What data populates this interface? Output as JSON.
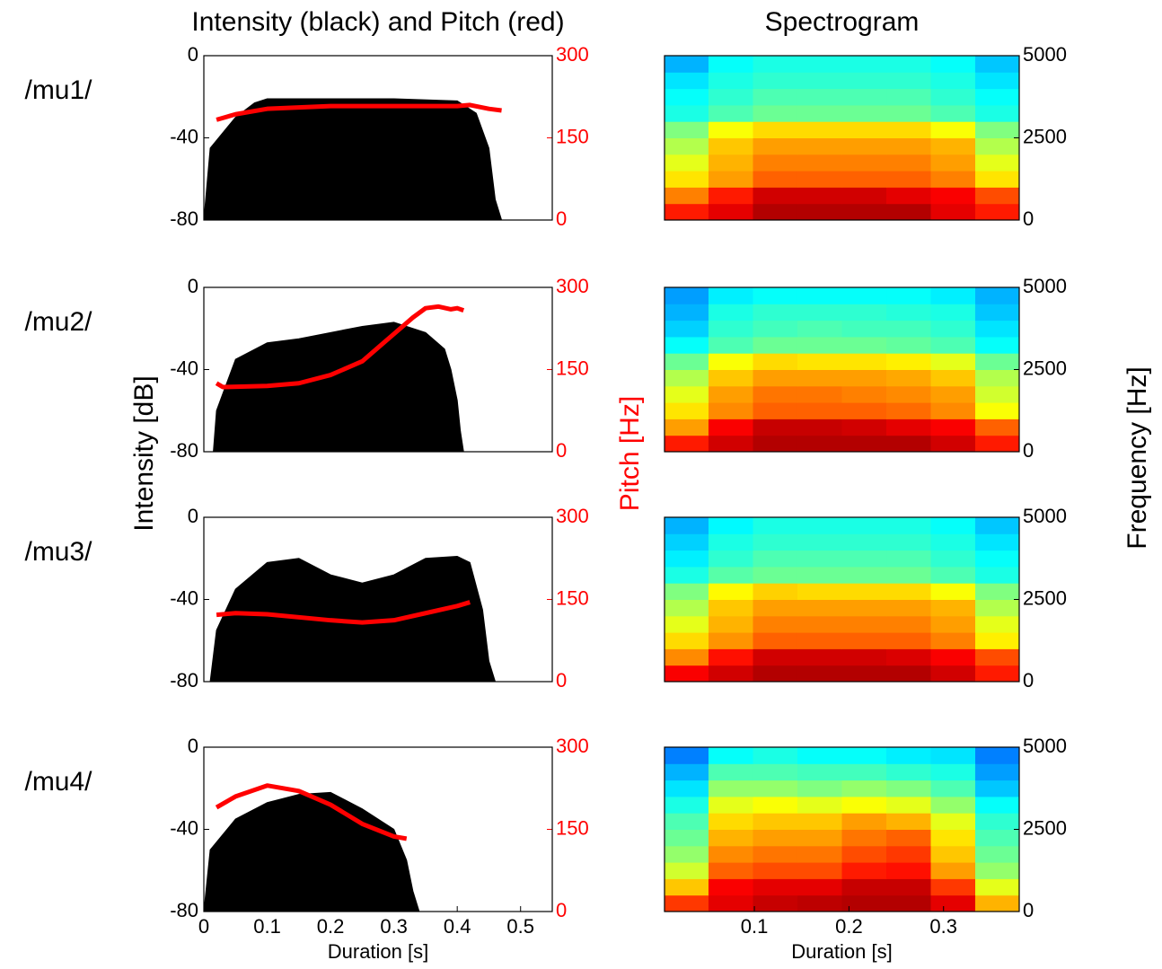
{
  "chart_data": [
    {
      "type": "line",
      "title": "Intensity (black) and Pitch (red)",
      "label": "/mu1/",
      "xlim": [
        0,
        0.55
      ],
      "ylim": [
        -80,
        0
      ],
      "yticks": [
        -80,
        -40,
        0
      ],
      "y2lim": [
        0,
        300
      ],
      "y2ticks": [
        0,
        150,
        300
      ],
      "series": [
        {
          "color": "#000000",
          "area": true,
          "x": [
            0,
            0.01,
            0.05,
            0.08,
            0.1,
            0.2,
            0.3,
            0.4,
            0.43,
            0.45,
            0.46,
            0.47
          ],
          "values": [
            -80,
            -45,
            -30,
            -23,
            -21,
            -21,
            -21,
            -22,
            -28,
            -45,
            -70,
            -80
          ]
        },
        {
          "color": "#ff0000",
          "axis": "y2",
          "x": [
            0.02,
            0.05,
            0.1,
            0.2,
            0.3,
            0.4,
            0.42,
            0.45,
            0.47
          ],
          "values": [
            183,
            193,
            203,
            208,
            208,
            208,
            210,
            203,
            200
          ]
        }
      ]
    },
    {
      "type": "heatmap",
      "title": "Spectrogram",
      "colormap": "jet",
      "xlim": [
        0.005,
        0.38
      ],
      "ylim": [
        0,
        5000
      ],
      "yticks": [
        0,
        2500,
        5000
      ],
      "x": [
        0.028,
        0.075,
        0.122,
        0.169,
        0.216,
        0.263,
        0.31,
        0.357
      ],
      "y": [
        250,
        750,
        1250,
        1750,
        2250,
        2750,
        3250,
        3750,
        4250,
        4750
      ],
      "z": [
        [
          0.85,
          0.9,
          0.95,
          0.95,
          0.95,
          0.95,
          0.9,
          0.85
        ],
        [
          0.75,
          0.85,
          0.92,
          0.92,
          0.92,
          0.9,
          0.88,
          0.8
        ],
        [
          0.65,
          0.72,
          0.78,
          0.78,
          0.78,
          0.78,
          0.75,
          0.65
        ],
        [
          0.6,
          0.7,
          0.75,
          0.75,
          0.75,
          0.75,
          0.72,
          0.6
        ],
        [
          0.55,
          0.68,
          0.72,
          0.72,
          0.72,
          0.72,
          0.7,
          0.55
        ],
        [
          0.5,
          0.62,
          0.66,
          0.66,
          0.66,
          0.66,
          0.62,
          0.5
        ],
        [
          0.4,
          0.45,
          0.48,
          0.48,
          0.48,
          0.48,
          0.45,
          0.4
        ],
        [
          0.38,
          0.42,
          0.45,
          0.45,
          0.45,
          0.45,
          0.42,
          0.38
        ],
        [
          0.35,
          0.4,
          0.42,
          0.42,
          0.42,
          0.42,
          0.4,
          0.35
        ],
        [
          0.3,
          0.38,
          0.4,
          0.4,
          0.4,
          0.4,
          0.38,
          0.32
        ]
      ]
    },
    {
      "type": "line",
      "label": "/mu2/",
      "ylabel": "Intensity [dB]",
      "y2label": "Pitch [Hz]",
      "xlim": [
        0,
        0.55
      ],
      "ylim": [
        -80,
        0
      ],
      "yticks": [
        -80,
        -40,
        0
      ],
      "y2lim": [
        0,
        300
      ],
      "y2ticks": [
        0,
        150,
        300
      ],
      "series": [
        {
          "color": "#000000",
          "area": true,
          "x": [
            0.015,
            0.02,
            0.05,
            0.1,
            0.15,
            0.2,
            0.25,
            0.3,
            0.35,
            0.38,
            0.39,
            0.4,
            0.405,
            0.41
          ],
          "values": [
            -80,
            -60,
            -35,
            -27,
            -25,
            -22,
            -19,
            -17,
            -22,
            -30,
            -40,
            -55,
            -70,
            -80
          ]
        },
        {
          "color": "#ff0000",
          "axis": "y2",
          "x": [
            0.02,
            0.03,
            0.1,
            0.15,
            0.2,
            0.25,
            0.3,
            0.33,
            0.35,
            0.37,
            0.39,
            0.4,
            0.41
          ],
          "values": [
            125,
            118,
            120,
            125,
            140,
            165,
            215,
            245,
            262,
            265,
            260,
            262,
            258
          ]
        }
      ]
    },
    {
      "type": "heatmap",
      "ylabel": "Frequency [Hz]",
      "colormap": "jet",
      "xlim": [
        0.005,
        0.38
      ],
      "ylim": [
        0,
        5000
      ],
      "yticks": [
        0,
        2500,
        5000
      ],
      "x": [
        0.028,
        0.075,
        0.122,
        0.169,
        0.216,
        0.263,
        0.31,
        0.357
      ],
      "y": [
        250,
        750,
        1250,
        1750,
        2250,
        2750,
        3250,
        3750,
        4250,
        4750
      ],
      "z": [
        [
          0.85,
          0.92,
          0.95,
          0.95,
          0.95,
          0.95,
          0.92,
          0.85
        ],
        [
          0.72,
          0.88,
          0.93,
          0.93,
          0.92,
          0.9,
          0.88,
          0.78
        ],
        [
          0.65,
          0.74,
          0.78,
          0.78,
          0.78,
          0.77,
          0.74,
          0.62
        ],
        [
          0.6,
          0.72,
          0.76,
          0.76,
          0.75,
          0.74,
          0.72,
          0.58
        ],
        [
          0.55,
          0.68,
          0.72,
          0.72,
          0.72,
          0.71,
          0.68,
          0.55
        ],
        [
          0.48,
          0.62,
          0.66,
          0.65,
          0.65,
          0.64,
          0.6,
          0.48
        ],
        [
          0.38,
          0.45,
          0.48,
          0.48,
          0.48,
          0.47,
          0.45,
          0.38
        ],
        [
          0.33,
          0.42,
          0.44,
          0.45,
          0.44,
          0.44,
          0.42,
          0.35
        ],
        [
          0.3,
          0.4,
          0.42,
          0.42,
          0.42,
          0.41,
          0.4,
          0.32
        ],
        [
          0.28,
          0.36,
          0.38,
          0.38,
          0.38,
          0.38,
          0.36,
          0.3
        ]
      ]
    },
    {
      "type": "line",
      "label": "/mu3/",
      "xlim": [
        0,
        0.55
      ],
      "ylim": [
        -80,
        0
      ],
      "yticks": [
        -80,
        -40,
        0
      ],
      "y2lim": [
        0,
        300
      ],
      "y2ticks": [
        0,
        150,
        300
      ],
      "series": [
        {
          "color": "#000000",
          "area": true,
          "x": [
            0.01,
            0.02,
            0.05,
            0.1,
            0.15,
            0.2,
            0.25,
            0.3,
            0.35,
            0.4,
            0.42,
            0.44,
            0.45,
            0.46
          ],
          "values": [
            -80,
            -55,
            -35,
            -22,
            -20,
            -28,
            -32,
            -28,
            -20,
            -19,
            -22,
            -45,
            -70,
            -80
          ]
        },
        {
          "color": "#ff0000",
          "axis": "y2",
          "x": [
            0.02,
            0.05,
            0.1,
            0.2,
            0.25,
            0.3,
            0.35,
            0.4,
            0.42
          ],
          "values": [
            122,
            125,
            123,
            112,
            108,
            112,
            125,
            138,
            145
          ]
        }
      ]
    },
    {
      "type": "heatmap",
      "colormap": "jet",
      "xlim": [
        0.005,
        0.38
      ],
      "ylim": [
        0,
        5000
      ],
      "yticks": [
        0,
        2500,
        5000
      ],
      "x": [
        0.028,
        0.075,
        0.122,
        0.169,
        0.216,
        0.263,
        0.31,
        0.357
      ],
      "y": [
        250,
        750,
        1250,
        1750,
        2250,
        2750,
        3250,
        3750,
        4250,
        4750
      ],
      "z": [
        [
          0.88,
          0.92,
          0.95,
          0.95,
          0.95,
          0.95,
          0.92,
          0.85
        ],
        [
          0.74,
          0.86,
          0.92,
          0.92,
          0.92,
          0.91,
          0.88,
          0.8
        ],
        [
          0.66,
          0.73,
          0.78,
          0.78,
          0.78,
          0.78,
          0.75,
          0.64
        ],
        [
          0.6,
          0.7,
          0.75,
          0.75,
          0.75,
          0.75,
          0.72,
          0.6
        ],
        [
          0.55,
          0.68,
          0.72,
          0.72,
          0.72,
          0.72,
          0.7,
          0.55
        ],
        [
          0.5,
          0.63,
          0.67,
          0.66,
          0.66,
          0.66,
          0.62,
          0.5
        ],
        [
          0.4,
          0.46,
          0.48,
          0.48,
          0.48,
          0.48,
          0.45,
          0.4
        ],
        [
          0.36,
          0.42,
          0.45,
          0.45,
          0.45,
          0.45,
          0.42,
          0.38
        ],
        [
          0.33,
          0.4,
          0.42,
          0.42,
          0.42,
          0.42,
          0.4,
          0.35
        ],
        [
          0.3,
          0.37,
          0.4,
          0.4,
          0.4,
          0.4,
          0.38,
          0.32
        ]
      ]
    },
    {
      "type": "line",
      "label": "/mu4/",
      "xlabel": "Duration [s]",
      "xlim": [
        0,
        0.55
      ],
      "xticks": [
        0,
        0.1,
        0.2,
        0.3,
        0.4,
        0.5
      ],
      "ylim": [
        -80,
        0
      ],
      "yticks": [
        -80,
        -40,
        0
      ],
      "y2lim": [
        0,
        300
      ],
      "y2ticks": [
        0,
        150,
        300
      ],
      "series": [
        {
          "color": "#000000",
          "area": true,
          "x": [
            0,
            0.01,
            0.05,
            0.1,
            0.15,
            0.2,
            0.25,
            0.3,
            0.32,
            0.33,
            0.34
          ],
          "values": [
            -80,
            -50,
            -35,
            -27,
            -23,
            -22,
            -30,
            -40,
            -55,
            -70,
            -80
          ]
        },
        {
          "color": "#ff0000",
          "axis": "y2",
          "x": [
            0.02,
            0.05,
            0.1,
            0.15,
            0.2,
            0.25,
            0.3,
            0.32
          ],
          "values": [
            190,
            210,
            230,
            220,
            195,
            160,
            137,
            133
          ]
        }
      ]
    },
    {
      "type": "heatmap",
      "xlabel": "Duration [s]",
      "colormap": "jet",
      "xlim": [
        0.005,
        0.38
      ],
      "xticks": [
        0.1,
        0.2,
        0.3
      ],
      "ylim": [
        0,
        5000
      ],
      "yticks": [
        0,
        2500,
        5000
      ],
      "x": [
        0.028,
        0.075,
        0.122,
        0.169,
        0.216,
        0.263,
        0.31,
        0.357
      ],
      "y": [
        250,
        750,
        1250,
        1750,
        2250,
        2750,
        3250,
        3750,
        4250,
        4750
      ],
      "z": [
        [
          0.82,
          0.9,
          0.93,
          0.94,
          0.95,
          0.95,
          0.9,
          0.7
        ],
        [
          0.68,
          0.88,
          0.9,
          0.9,
          0.93,
          0.93,
          0.82,
          0.6
        ],
        [
          0.58,
          0.78,
          0.8,
          0.8,
          0.85,
          0.86,
          0.72,
          0.52
        ],
        [
          0.52,
          0.74,
          0.76,
          0.76,
          0.8,
          0.82,
          0.68,
          0.48
        ],
        [
          0.48,
          0.7,
          0.72,
          0.72,
          0.76,
          0.78,
          0.65,
          0.45
        ],
        [
          0.45,
          0.66,
          0.68,
          0.68,
          0.72,
          0.7,
          0.6,
          0.42
        ],
        [
          0.4,
          0.6,
          0.62,
          0.6,
          0.62,
          0.6,
          0.52,
          0.38
        ],
        [
          0.35,
          0.52,
          0.52,
          0.5,
          0.52,
          0.5,
          0.45,
          0.32
        ],
        [
          0.3,
          0.45,
          0.45,
          0.44,
          0.44,
          0.42,
          0.4,
          0.28
        ],
        [
          0.25,
          0.38,
          0.4,
          0.38,
          0.38,
          0.36,
          0.35,
          0.25
        ]
      ]
    }
  ]
}
